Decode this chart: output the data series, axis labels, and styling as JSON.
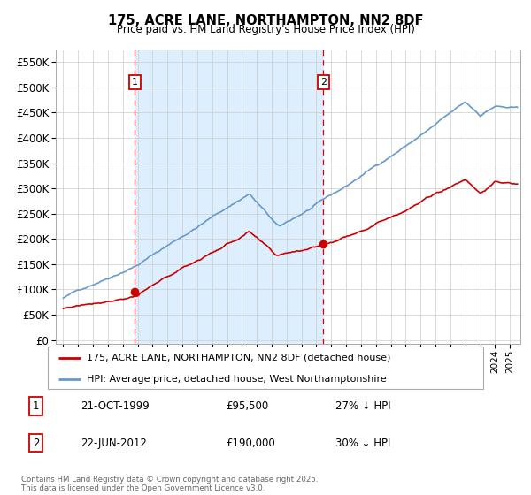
{
  "title": "175, ACRE LANE, NORTHAMPTON, NN2 8DF",
  "subtitle": "Price paid vs. HM Land Registry's House Price Index (HPI)",
  "legend_line1": "175, ACRE LANE, NORTHAMPTON, NN2 8DF (detached house)",
  "legend_line2": "HPI: Average price, detached house, West Northamptonshire",
  "transaction1_date": "21-OCT-1999",
  "transaction1_price": "£95,500",
  "transaction1_hpi": "27% ↓ HPI",
  "transaction1_year": 1999.8,
  "transaction2_date": "22-JUN-2012",
  "transaction2_price": "£190,000",
  "transaction2_hpi": "30% ↓ HPI",
  "transaction2_year": 2012.47,
  "footnote": "Contains HM Land Registry data © Crown copyright and database right 2025.\nThis data is licensed under the Open Government Licence v3.0.",
  "red_line_color": "#cc0000",
  "blue_line_color": "#6699cc",
  "bg_highlight_color": "#ddeeff",
  "grid_color": "#cccccc",
  "yticks": [
    0,
    50000,
    100000,
    150000,
    200000,
    250000,
    300000,
    350000,
    400000,
    450000,
    500000,
    550000
  ],
  "xlim_start": 1994.5,
  "xlim_end": 2025.7
}
